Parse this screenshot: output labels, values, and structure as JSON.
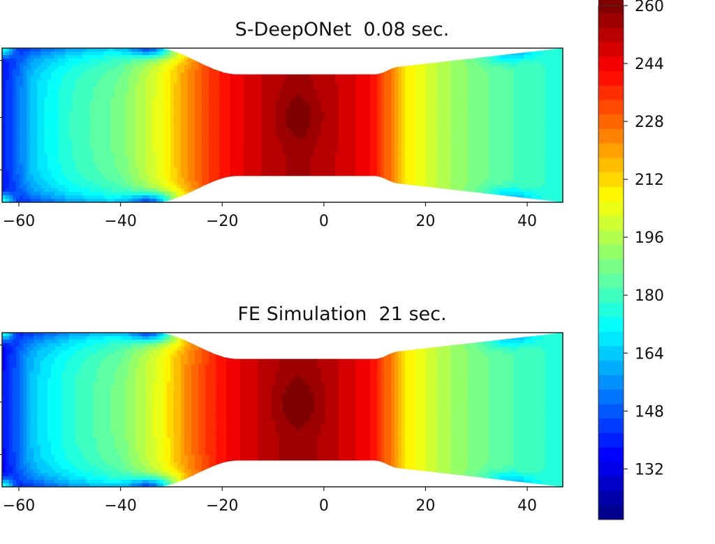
{
  "chart_data": [
    {
      "type": "heatmap",
      "title": "S-DeepONet  0.08 sec.",
      "x_ticks": [
        -60,
        -40,
        -20,
        0,
        20,
        40
      ],
      "xlim": [
        -63.3,
        47
      ],
      "grid": false,
      "centerline_profile": {
        "x": [
          -63,
          -58,
          -50,
          -40,
          -32,
          -27,
          -22,
          -16,
          -10,
          -5,
          0,
          5,
          10,
          13,
          16,
          22,
          30,
          40,
          47
        ],
        "value": [
          150,
          165,
          178,
          188,
          205,
          222,
          236,
          246,
          252,
          256,
          252,
          248,
          240,
          226,
          210,
          198,
          188,
          180,
          176
        ]
      }
    },
    {
      "type": "heatmap",
      "title": "FE Simulation  21 sec.",
      "x_ticks": [
        -60,
        -40,
        -20,
        0,
        20,
        40
      ],
      "xlim": [
        -63.3,
        47
      ],
      "grid": false,
      "centerline_profile": {
        "x": [
          -63,
          -58,
          -50,
          -40,
          -32,
          -27,
          -22,
          -16,
          -10,
          -5,
          0,
          5,
          10,
          13,
          16,
          22,
          30,
          40,
          47
        ],
        "value": [
          148,
          164,
          177,
          188,
          205,
          223,
          237,
          247,
          253,
          257,
          253,
          248,
          240,
          226,
          210,
          198,
          188,
          180,
          176
        ]
      }
    }
  ],
  "colorbar": {
    "colormap": "jet",
    "range": [
      118,
      260
    ],
    "level_step": 4,
    "ticks": [
      260,
      244,
      228,
      212,
      196,
      180,
      164,
      148,
      132
    ]
  }
}
